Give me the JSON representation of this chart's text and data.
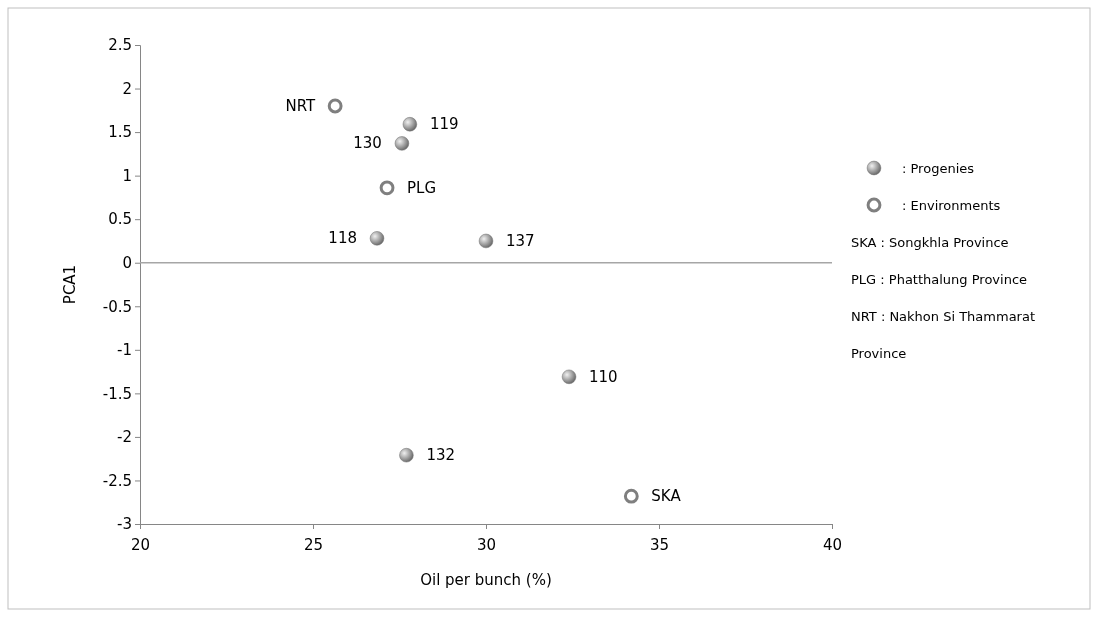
{
  "chart_data": {
    "type": "scatter",
    "xlabel": "Oil per bunch (%)",
    "ylabel": "PCA1",
    "xlim": [
      20,
      40
    ],
    "xticks": [
      20,
      25,
      30,
      35,
      40
    ],
    "ylim": [
      -3,
      2.5
    ],
    "yticks": [
      -3,
      -2.5,
      -2,
      -1.5,
      -1,
      -0.5,
      0,
      0.5,
      1,
      1.5,
      2,
      2.5
    ],
    "marker": "circle",
    "legend": "right",
    "grid": false,
    "ref_lines": [
      {
        "axis": "y",
        "value": 0,
        "color": "#a6a6a6"
      }
    ],
    "series": [
      {
        "name": ": Progenies",
        "color": "#6e6e6e",
        "x": [
          27.8,
          27.57,
          26.85,
          30.0,
          32.4,
          27.7
        ],
        "values": [
          1.59,
          1.37,
          0.28,
          0.25,
          -1.31,
          -2.21
        ]
      },
      {
        "name": ": Environments",
        "color": "#7f7f7f",
        "x": [
          25.64,
          27.14,
          34.2
        ],
        "values": [
          1.8,
          0.86,
          -2.68
        ]
      }
    ],
    "annotations": [
      {
        "text": "119",
        "x": 27.8,
        "y": 1.59
      },
      {
        "text": "130",
        "x": 27.57,
        "y": 1.37
      },
      {
        "text": "118",
        "x": 26.85,
        "y": 0.28
      },
      {
        "text": "137",
        "x": 30.0,
        "y": 0.25
      },
      {
        "text": "110",
        "x": 32.4,
        "y": -1.31
      },
      {
        "text": "132",
        "x": 27.7,
        "y": -2.21
      },
      {
        "text": "NRT",
        "x": 25.64,
        "y": 1.8
      },
      {
        "text": "PLG",
        "x": 27.14,
        "y": 0.86
      },
      {
        "text": "SKA",
        "x": 34.2,
        "y": -2.68
      },
      "SKA : Songkhla Province",
      "PLG : Phatthalung Province",
      "NRT : Nakhon Si Thammarat",
      "Province"
    ]
  }
}
